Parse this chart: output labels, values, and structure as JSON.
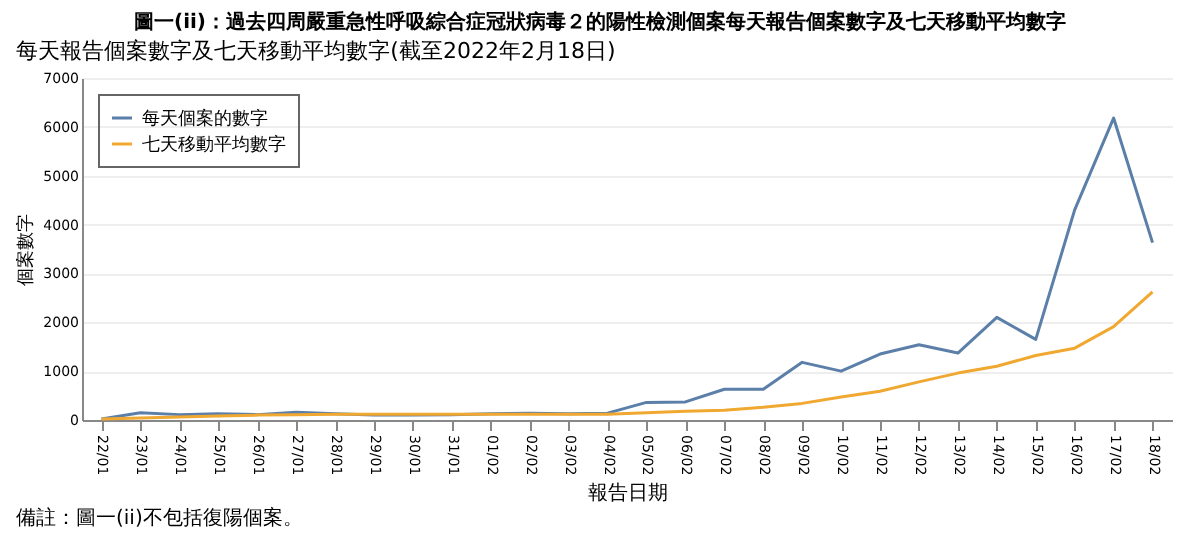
{
  "chart_data": {
    "type": "line",
    "title": "圖一(ii)：過去四周嚴重急性呼吸綜合症冠狀病毒２的陽性檢測個案每天報告個案數字及七天移動平均數字",
    "subtitle": "每天報告個案數字及七天移動平均數字(截至2022年2月18日)",
    "xlabel": "報告日期",
    "ylabel": "個案數字",
    "categories": [
      "22/01",
      "23/01",
      "24/01",
      "25/01",
      "26/01",
      "27/01",
      "28/01",
      "29/01",
      "30/01",
      "31/01",
      "01/02",
      "02/02",
      "03/02",
      "04/02",
      "05/02",
      "06/02",
      "07/02",
      "08/02",
      "09/02",
      "10/02",
      "11/02",
      "12/02",
      "13/02",
      "14/02",
      "15/02",
      "16/02",
      "17/02",
      "18/02"
    ],
    "series": [
      {
        "name": "每天個案的數字",
        "color": "#5b7fa8",
        "values": [
          20,
          150,
          110,
          130,
          110,
          160,
          130,
          100,
          100,
          110,
          130,
          140,
          130,
          140,
          360,
          370,
          630,
          630,
          1180,
          1000,
          1350,
          1540,
          1370,
          2100,
          1650,
          4300,
          6180,
          3630
        ]
      },
      {
        "name": "七天移動平均數字",
        "color": "#f0a830",
        "values": [
          20,
          40,
          60,
          80,
          100,
          110,
          120,
          120,
          120,
          120,
          120,
          120,
          120,
          120,
          150,
          180,
          200,
          260,
          340,
          470,
          590,
          780,
          960,
          1100,
          1320,
          1470,
          1910,
          2620
        ]
      }
    ],
    "ylim": [
      0,
      7000
    ],
    "yticks": [
      0,
      1000,
      2000,
      3000,
      4000,
      5000,
      6000,
      7000
    ],
    "grid": "y",
    "legend": "top left",
    "marker": "none",
    "annotations": [
      "備註：圖一(ii)不包括復陽個案。"
    ]
  }
}
